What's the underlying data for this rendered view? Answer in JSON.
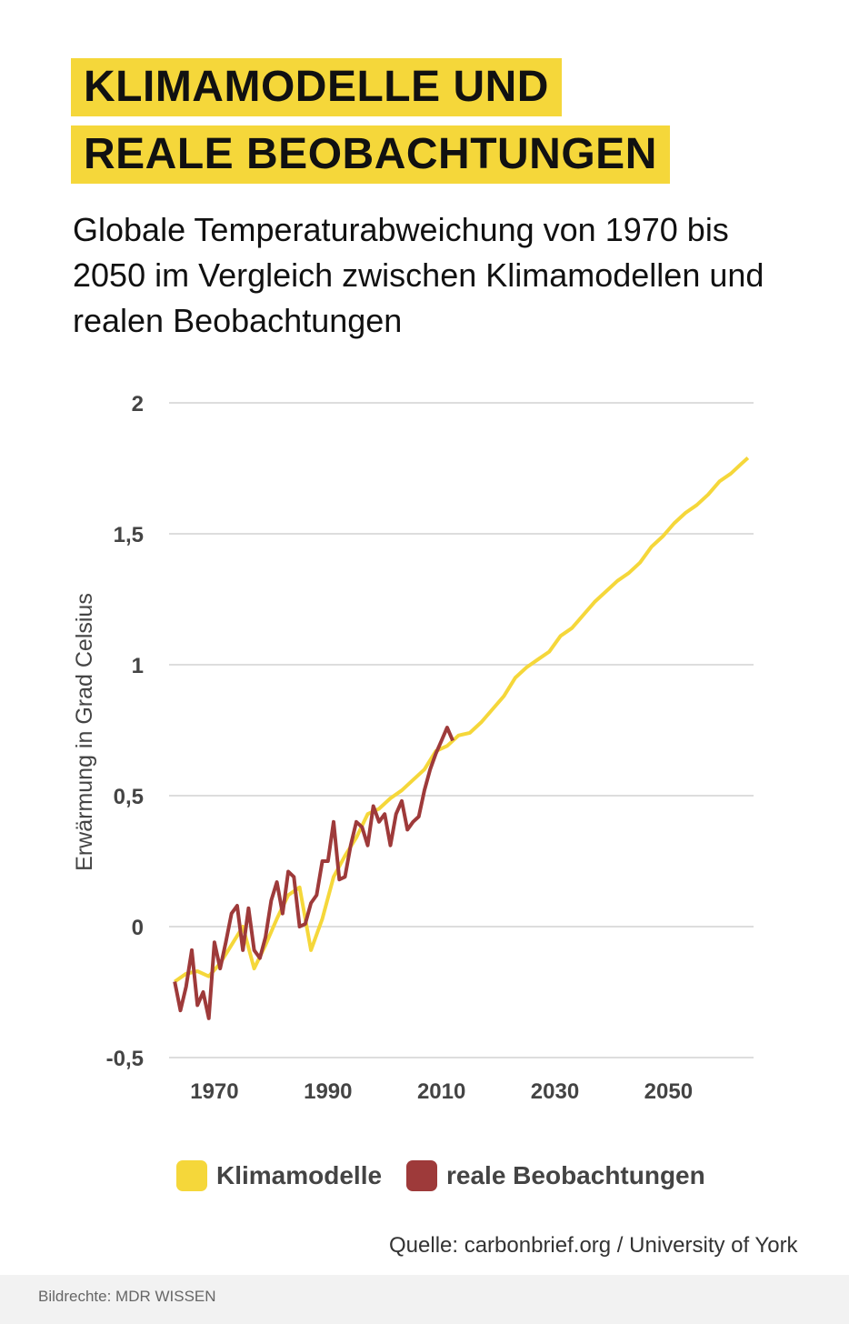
{
  "chart_data": {
    "type": "line",
    "title": [
      "KLIMAMODELLE UND",
      "REALE BEOBACHTUNGEN"
    ],
    "subtitle": "Globale Temperaturabweichung von 1970 bis 2050 im Vergleich zwischen Klimamodellen und realen Beobachtungen",
    "y_label": "Erwärmung in Grad Celsius",
    "source": "Quelle: carbonbrief.org / University of York",
    "credit": "Bildrechte: MDR WISSEN",
    "xlim": [
      1962,
      2065
    ],
    "xticks": [
      1970,
      1990,
      2010,
      2030,
      2050
    ],
    "ylim": [
      -0.5,
      2
    ],
    "yticks": [
      {
        "value": -0.5,
        "label": "-0,5"
      },
      0,
      {
        "value": 0.5,
        "label": "0,5"
      },
      1,
      {
        "value": 1.5,
        "label": "1,5"
      },
      2
    ],
    "grid": true,
    "series": [
      {
        "name": "Klimamodelle",
        "color": "#f5d73a",
        "x": [
          1963,
          1965,
          1967,
          1969,
          1971,
          1973,
          1975,
          1977,
          1979,
          1981,
          1983,
          1985,
          1987,
          1989,
          1991,
          1993,
          1995,
          1997,
          1999,
          2001,
          2003,
          2005,
          2007,
          2009,
          2011,
          2013,
          2015,
          2017,
          2019,
          2021,
          2023,
          2025,
          2027,
          2029,
          2031,
          2033,
          2035,
          2037,
          2039,
          2041,
          2043,
          2045,
          2047,
          2049,
          2051,
          2053,
          2055,
          2057,
          2059,
          2061,
          2063,
          2064
        ],
        "values": [
          -0.21,
          -0.18,
          -0.17,
          -0.19,
          -0.14,
          -0.07,
          0.0,
          -0.16,
          -0.07,
          0.03,
          0.12,
          0.15,
          -0.09,
          0.03,
          0.19,
          0.27,
          0.34,
          0.43,
          0.45,
          0.49,
          0.52,
          0.56,
          0.6,
          0.67,
          0.69,
          0.73,
          0.74,
          0.78,
          0.83,
          0.88,
          0.95,
          0.99,
          1.02,
          1.05,
          1.11,
          1.14,
          1.19,
          1.24,
          1.28,
          1.32,
          1.35,
          1.39,
          1.45,
          1.49,
          1.54,
          1.58,
          1.61,
          1.65,
          1.7,
          1.73,
          1.77,
          1.79
        ]
      },
      {
        "name": "reale Beobachtungen",
        "color": "#9e3a3a",
        "x": [
          1963,
          1964,
          1965,
          1966,
          1967,
          1968,
          1969,
          1970,
          1971,
          1972,
          1973,
          1974,
          1975,
          1976,
          1977,
          1978,
          1979,
          1980,
          1981,
          1982,
          1983,
          1984,
          1985,
          1986,
          1987,
          1988,
          1989,
          1990,
          1991,
          1992,
          1993,
          1994,
          1995,
          1996,
          1997,
          1998,
          1999,
          2000,
          2001,
          2002,
          2003,
          2004,
          2005,
          2006,
          2007,
          2008,
          2009,
          2010,
          2011,
          2012
        ],
        "values": [
          -0.21,
          -0.32,
          -0.23,
          -0.09,
          -0.3,
          -0.25,
          -0.35,
          -0.06,
          -0.16,
          -0.06,
          0.05,
          0.08,
          -0.09,
          0.07,
          -0.09,
          -0.12,
          -0.04,
          0.1,
          0.17,
          0.05,
          0.21,
          0.19,
          0.0,
          0.01,
          0.09,
          0.12,
          0.25,
          0.25,
          0.4,
          0.18,
          0.19,
          0.31,
          0.4,
          0.38,
          0.31,
          0.46,
          0.4,
          0.43,
          0.31,
          0.43,
          0.48,
          0.37,
          0.4,
          0.42,
          0.52,
          0.6,
          0.66,
          0.71,
          0.76,
          0.71
        ]
      }
    ]
  }
}
